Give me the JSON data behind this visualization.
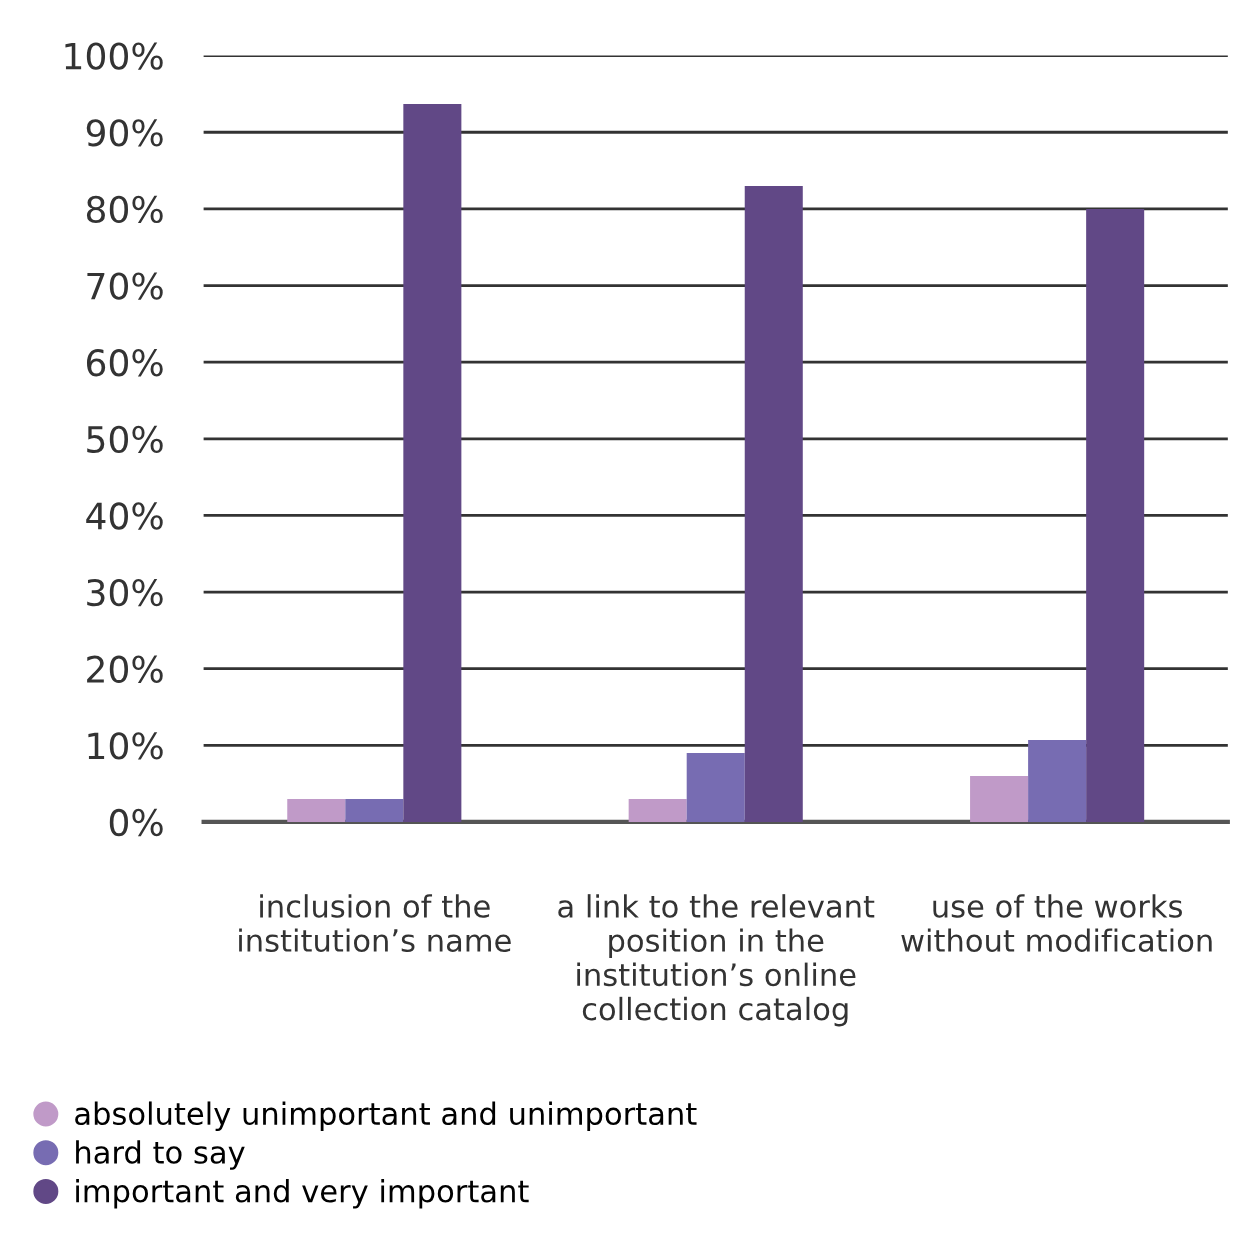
{
  "chart_data": {
    "type": "bar",
    "categories": [
      "inclusion of the\ninstitution’s name",
      "a link to the relevant\nposition in the\ninstitution’s online\ncollection catalog",
      "use of the works\nwithout modification"
    ],
    "series": [
      {
        "name": "absolutely unimportant and unimportant",
        "color": "#c09ac8",
        "values": [
          3,
          3,
          6
        ]
      },
      {
        "name": "hard to say",
        "color": "#776cb2",
        "values": [
          3,
          9,
          10.7
        ]
      },
      {
        "name": "important and very important",
        "color": "#614886",
        "values": [
          93.7,
          83,
          80
        ]
      }
    ],
    "ylim": [
      0,
      100
    ],
    "yticks": [
      {
        "value": 0,
        "label": "0%"
      },
      {
        "value": 10,
        "label": "10%"
      },
      {
        "value": 20,
        "label": "20%"
      },
      {
        "value": 30,
        "label": "30%"
      },
      {
        "value": 40,
        "label": "40%"
      },
      {
        "value": 50,
        "label": "50%"
      },
      {
        "value": 60,
        "label": "60%"
      },
      {
        "value": 70,
        "label": "70%"
      },
      {
        "value": 80,
        "label": "80%"
      },
      {
        "value": 90,
        "label": "90%"
      },
      {
        "value": 100,
        "label": "100%"
      }
    ],
    "grid": "y",
    "legend": "bottom left"
  }
}
